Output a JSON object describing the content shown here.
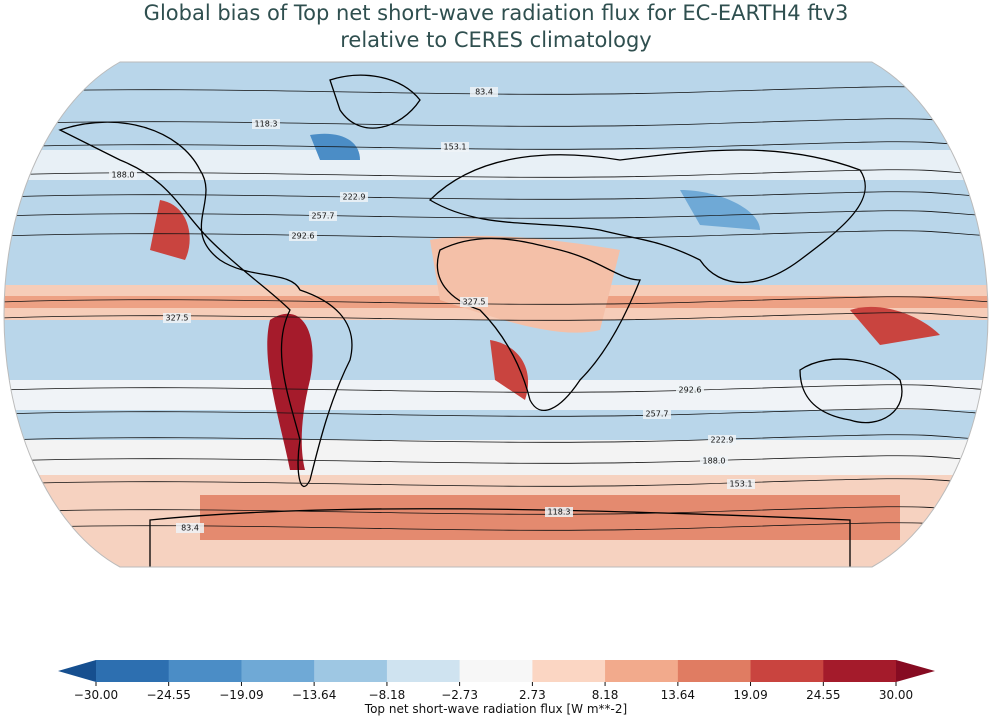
{
  "map": {
    "title_lines": [
      "Global bias of Top net short-wave radiation flux for EC-EARTH4 ftv3",
      "relative to CERES climatology"
    ],
    "contour_levels": [
      83.4,
      118.3,
      153.1,
      {
        "value": 188,
        "label": "188.0"
      },
      222.9,
      257.7,
      292.6,
      327.5
    ],
    "colorbar": {
      "label": "Top net short-wave radiation flux [W m**-2]",
      "lim": [
        -30,
        30
      ],
      "ticks": [
        {
          "value": -30,
          "label": "−30.00"
        },
        {
          "value": -24.55,
          "label": "−24.55"
        },
        {
          "value": -19.09,
          "label": "−19.09"
        },
        {
          "value": -13.64,
          "label": "−13.64"
        },
        {
          "value": -8.18,
          "label": "−8.18"
        },
        {
          "value": -2.73,
          "label": "−2.73"
        },
        {
          "value": 2.73,
          "label": "2.73"
        },
        {
          "value": 8.18,
          "label": "8.18"
        },
        {
          "value": 13.64,
          "label": "13.64"
        },
        {
          "value": 19.09,
          "label": "19.09"
        },
        {
          "value": 24.55,
          "label": "24.55"
        },
        {
          "value": 30,
          "label": "30.00"
        }
      ],
      "colors": [
        "#2d6fb0",
        "#4b8dc6",
        "#6fa9d6",
        "#9ec7e3",
        "#cfe3f0",
        "#f7f7f7",
        "#fbd6c3",
        "#f2aa8c",
        "#e07c62",
        "#c9443f",
        "#a41b2b"
      ],
      "under_color": "#164f8f",
      "over_color": "#860b22"
    }
  }
}
